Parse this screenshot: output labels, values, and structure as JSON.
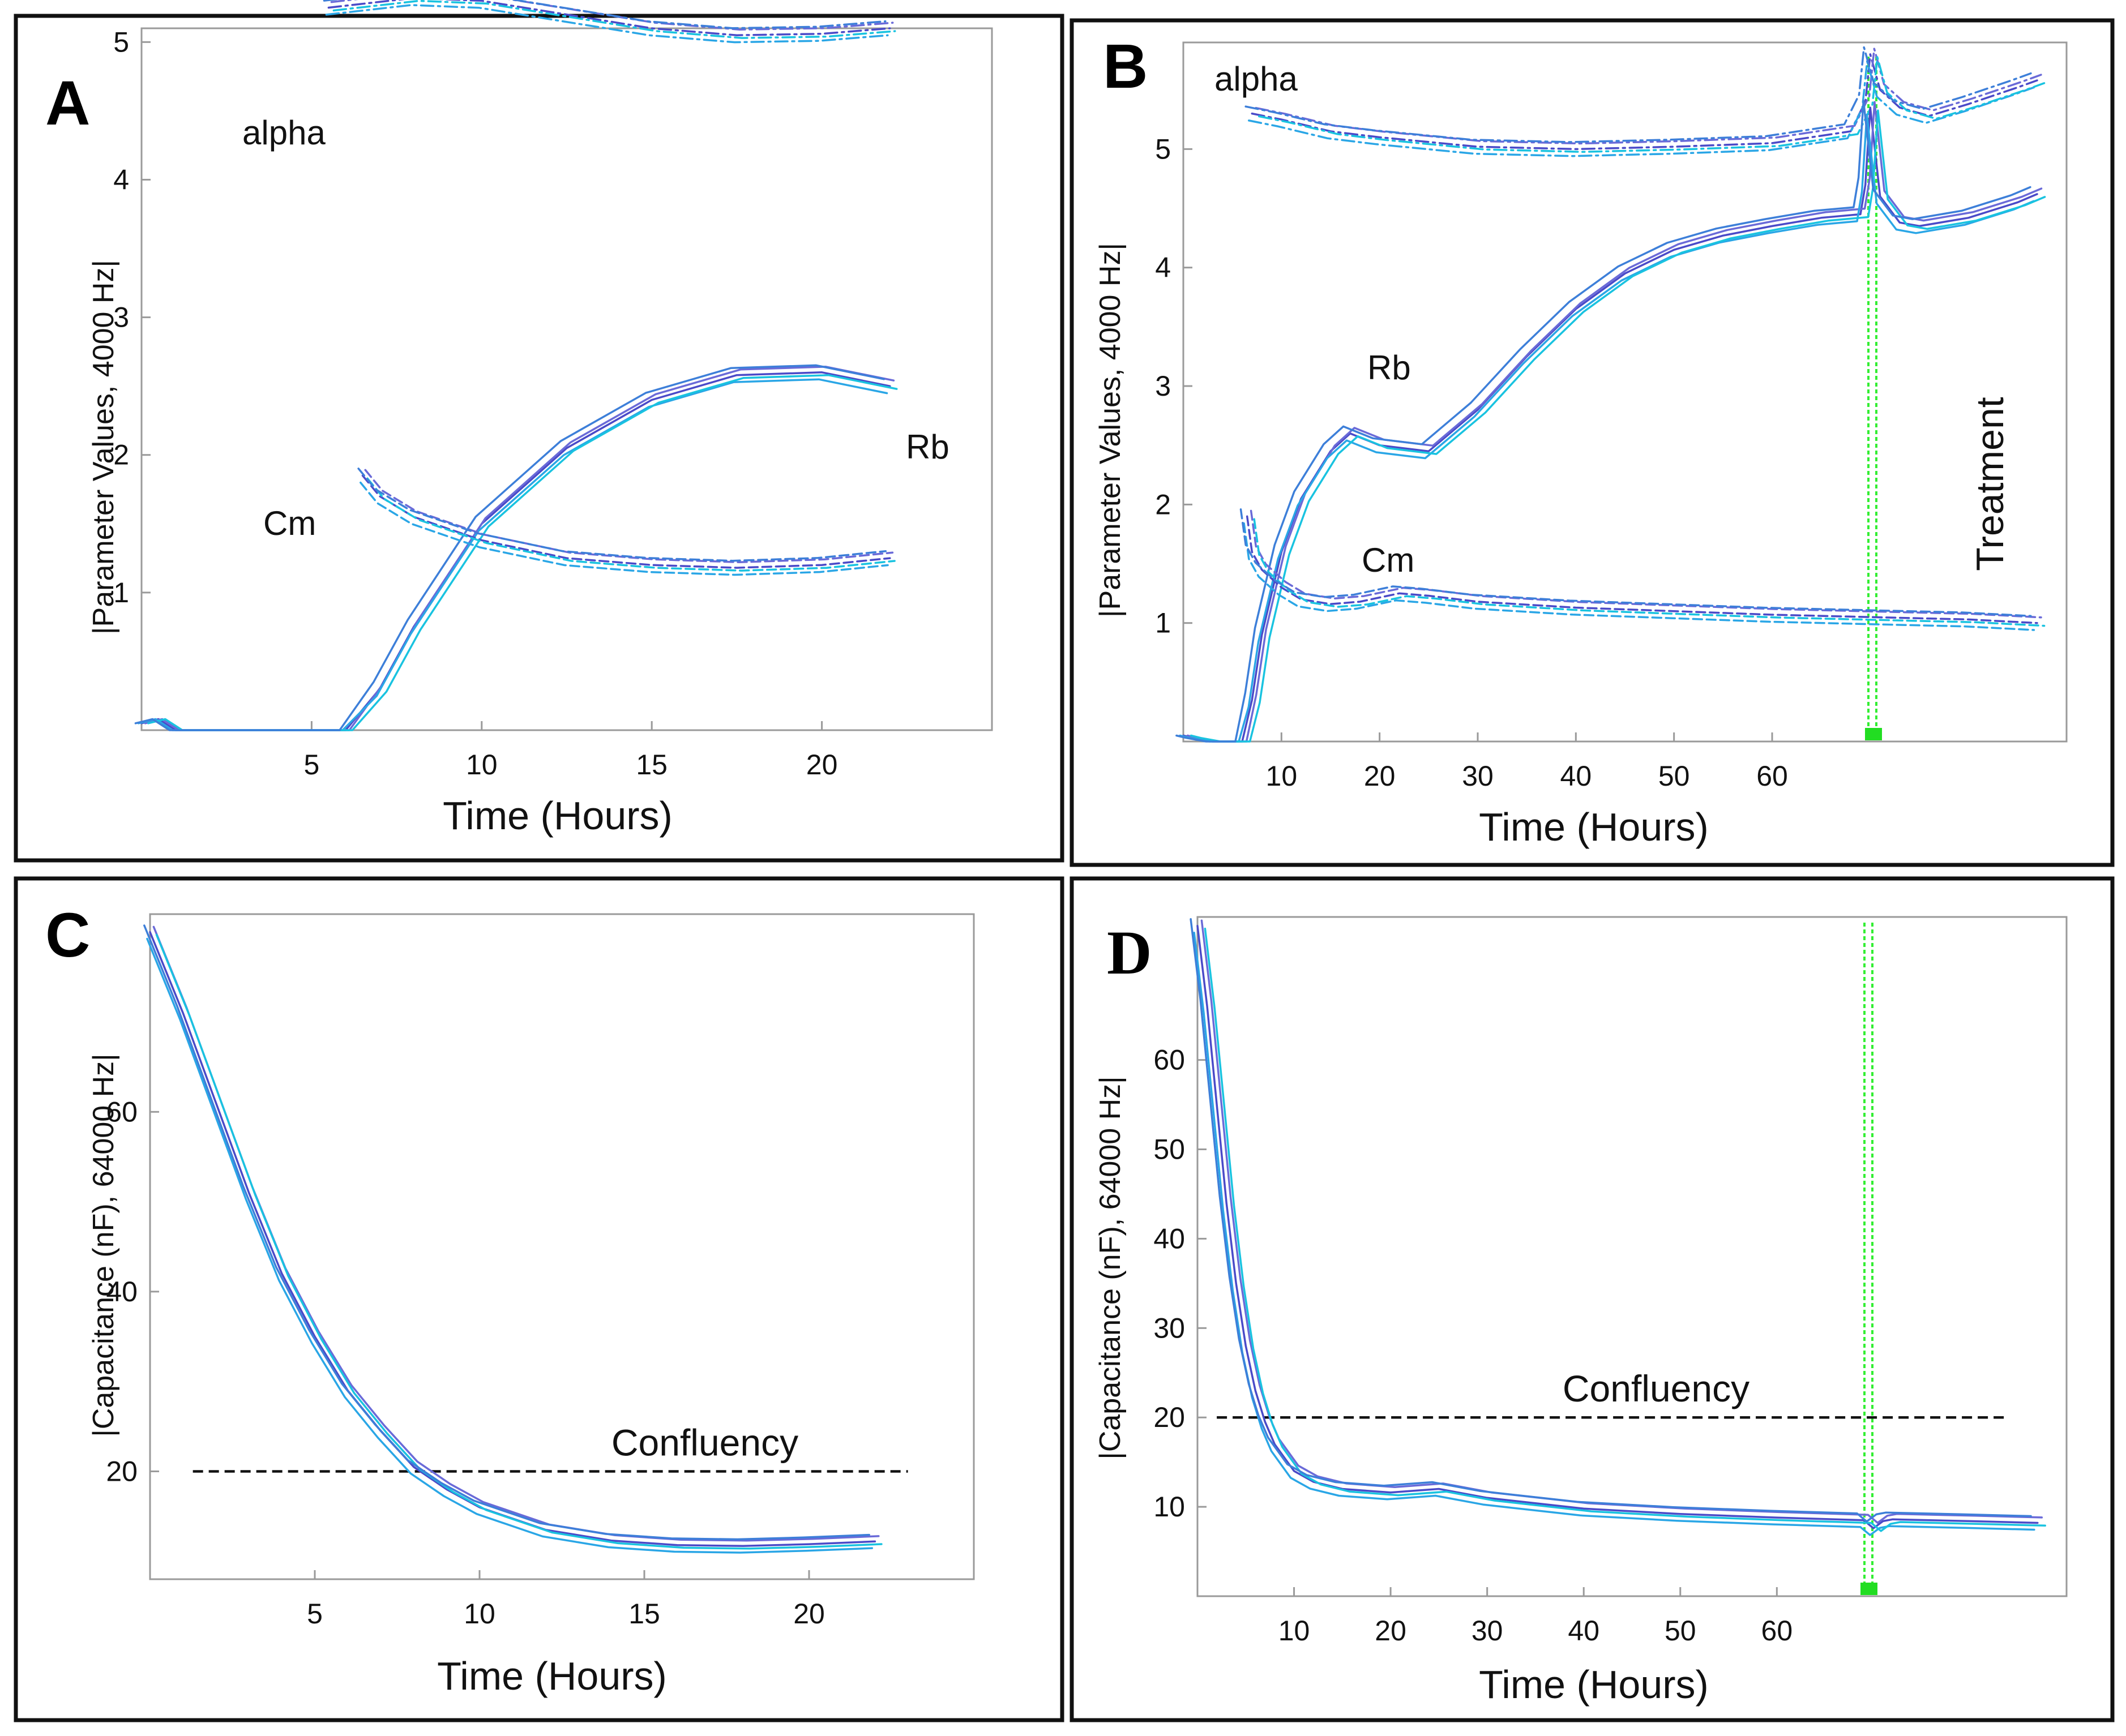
{
  "colors": {
    "frame": "#111111",
    "panel_label": "#1a1aff",
    "series_palette": [
      "#4a4ac8",
      "#6a6ad8",
      "#2aa6e6",
      "#19c3e0",
      "#3d7fd9"
    ],
    "confluency_line": "#111111",
    "treatment_line": "#33ee33"
  },
  "chart_data": [
    {
      "id": "A",
      "type": "line",
      "panel_label": "A",
      "xlabel": "Time (Hours)",
      "ylabel": "|Parameter Values, 4000 Hz|",
      "xlim": [
        0,
        25
      ],
      "ylim": [
        0,
        5.1
      ],
      "xticks": [
        5,
        10,
        15,
        20
      ],
      "yticks": [
        1,
        2,
        3,
        4,
        5
      ],
      "annotations": [
        {
          "text": "alpha",
          "x": 4.3,
          "y": 5.25
        },
        {
          "text": "Rb",
          "x": 23.7,
          "y": 2.4
        },
        {
          "text": "Cm",
          "x": 3.6,
          "y": 1.7
        }
      ],
      "series": [
        {
          "name": "alpha",
          "style": "dashdot",
          "x": [
            5.5,
            8,
            10,
            12.5,
            15,
            17.5,
            20,
            22
          ],
          "y": [
            5.25,
            5.32,
            5.3,
            5.2,
            5.1,
            5.05,
            5.06,
            5.1
          ]
        },
        {
          "name": "Rb",
          "style": "solid",
          "x": [
            0,
            0.5,
            1,
            5,
            6,
            7,
            8,
            10,
            12.5,
            15,
            17.5,
            20,
            22
          ],
          "y": [
            0.05,
            0.08,
            0.0,
            0.0,
            0.0,
            0.3,
            0.75,
            1.5,
            2.05,
            2.4,
            2.58,
            2.6,
            2.5
          ]
        },
        {
          "name": "Cm",
          "style": "dashed",
          "x": [
            6.5,
            7,
            8,
            10,
            12.5,
            15,
            17.5,
            20,
            22
          ],
          "y": [
            1.85,
            1.7,
            1.55,
            1.38,
            1.25,
            1.2,
            1.18,
            1.2,
            1.25
          ]
        }
      ]
    },
    {
      "id": "B",
      "type": "line",
      "panel_label": "B",
      "xlabel": "Time (Hours)",
      "ylabel": "|Parameter Values, 4000 Hz|",
      "xlim": [
        0,
        90
      ],
      "ylim": [
        0,
        5.9
      ],
      "xticks": [
        10,
        20,
        30,
        40,
        50,
        60
      ],
      "yticks": [
        1,
        2,
        3,
        4,
        5
      ],
      "treatment_x": 70,
      "annotations": [
        {
          "text": "alpha",
          "x": 3,
          "y": 5.6
        },
        {
          "text": "Rb",
          "x": 18.5,
          "y": 3.1
        },
        {
          "text": "Cm",
          "x": 18,
          "y": 1.5
        },
        {
          "text": "Treatment",
          "x": 83,
          "y": 3.8
        }
      ],
      "series": [
        {
          "name": "alpha",
          "style": "dashdot",
          "x": [
            7,
            10,
            15,
            20,
            30,
            40,
            50,
            60,
            68,
            69.5,
            70,
            71,
            73,
            76,
            80,
            85,
            87
          ],
          "y": [
            5.3,
            5.25,
            5.15,
            5.1,
            5.02,
            5.0,
            5.02,
            5.05,
            5.15,
            5.4,
            5.8,
            5.5,
            5.35,
            5.28,
            5.38,
            5.52,
            5.58
          ]
        },
        {
          "name": "Rb",
          "style": "solid",
          "x": [
            0,
            1,
            3,
            6,
            7,
            8,
            10,
            12,
            15,
            17,
            20,
            25,
            30,
            35,
            40,
            45,
            50,
            55,
            60,
            65,
            69,
            69.5,
            70,
            71,
            73,
            75,
            80,
            85,
            87
          ],
          "y": [
            0.05,
            0.03,
            0.0,
            0.0,
            0.35,
            0.9,
            1.6,
            2.05,
            2.45,
            2.6,
            2.5,
            2.45,
            2.8,
            3.25,
            3.65,
            3.95,
            4.15,
            4.27,
            4.35,
            4.42,
            4.45,
            4.7,
            5.35,
            4.6,
            4.38,
            4.35,
            4.42,
            4.55,
            4.62
          ]
        },
        {
          "name": "Cm",
          "style": "dashed",
          "x": [
            6.5,
            7,
            8,
            10,
            12,
            15,
            18,
            22,
            25,
            30,
            40,
            50,
            60,
            70,
            80,
            87
          ],
          "y": [
            1.9,
            1.6,
            1.45,
            1.3,
            1.2,
            1.16,
            1.18,
            1.25,
            1.23,
            1.18,
            1.13,
            1.1,
            1.07,
            1.05,
            1.03,
            1.0
          ]
        }
      ]
    },
    {
      "id": "C",
      "type": "line",
      "panel_label": "C",
      "xlabel": "Time (Hours)",
      "ylabel": "|Capacitance (nF), 64000 Hz|",
      "xlim": [
        0,
        25
      ],
      "ylim": [
        8,
        82
      ],
      "xticks": [
        5,
        10,
        15,
        20
      ],
      "yticks": [
        20,
        40,
        60
      ],
      "confluency": {
        "label": "Confluency",
        "y": 20,
        "x_range": [
          1.3,
          23
        ]
      },
      "series": [
        {
          "name": "Capacitance",
          "style": "solid",
          "x": [
            0,
            1,
            2,
            3,
            4,
            5,
            6,
            7,
            8,
            9,
            10,
            12,
            14,
            16,
            18,
            20,
            22
          ],
          "y": [
            80,
            71,
            61,
            51,
            42,
            35,
            29,
            24.5,
            20.5,
            18,
            16,
            13.5,
            12.3,
            11.8,
            11.7,
            11.9,
            12.2
          ]
        }
      ]
    },
    {
      "id": "D",
      "type": "line",
      "panel_label": "D",
      "xlabel": "Time (Hours)",
      "ylabel": "|Capacitance (nF), 64000 Hz|",
      "xlim": [
        0,
        90
      ],
      "ylim": [
        0,
        76
      ],
      "xticks": [
        10,
        20,
        30,
        40,
        50,
        60
      ],
      "yticks": [
        10,
        20,
        30,
        40,
        50,
        60
      ],
      "treatment_x": 70,
      "confluency": {
        "label": "Confluency",
        "y": 20,
        "x_range": [
          2,
          84
        ]
      },
      "series": [
        {
          "name": "Capacitance",
          "style": "solid",
          "x": [
            0,
            1,
            2,
            3,
            4,
            5,
            6,
            7,
            8,
            10,
            12,
            15,
            20,
            25,
            30,
            40,
            50,
            60,
            69,
            70,
            71,
            72,
            80,
            87
          ],
          "y": [
            75,
            66,
            55,
            44,
            35,
            28,
            23,
            19.5,
            17,
            14,
            12.8,
            12,
            11.6,
            12,
            11,
            9.8,
            9.2,
            8.8,
            8.5,
            7.6,
            8.4,
            8.6,
            8.4,
            8.2
          ]
        }
      ]
    }
  ]
}
